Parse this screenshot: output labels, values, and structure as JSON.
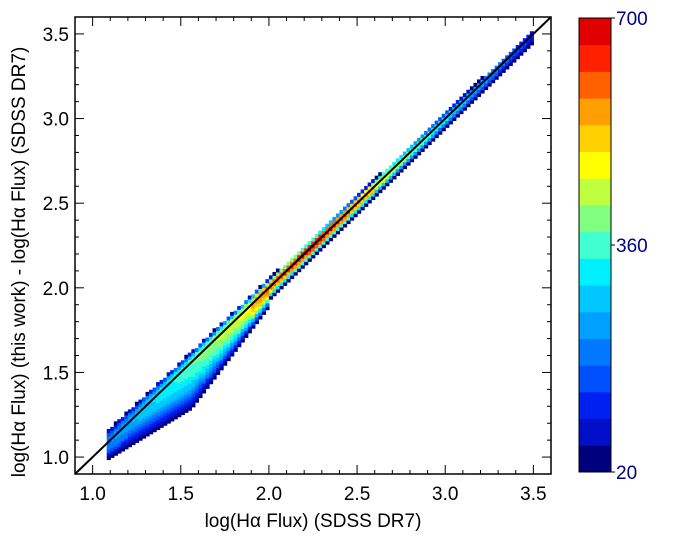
{
  "chart_data": {
    "type": "heatmap",
    "title": "",
    "xlabel": "log(Hα Flux) (SDSS DR7)",
    "ylabel": "log(Hα Flux) (this work) - log(Hα Flux) (SDSS DR7)",
    "xlim": [
      0.9,
      3.6
    ],
    "ylim": [
      0.9,
      3.6
    ],
    "xticks": [
      "1.0",
      "1.5",
      "2.0",
      "2.5",
      "3.0",
      "3.5"
    ],
    "yticks": [
      "1.0",
      "1.5",
      "2.0",
      "2.5",
      "3.0",
      "3.5"
    ],
    "grid": false,
    "reference_line": "y = x",
    "density_ridge": [
      [
        1.1,
        1.1
      ],
      [
        1.5,
        1.5
      ],
      [
        2.0,
        2.0
      ],
      [
        2.5,
        2.5
      ],
      [
        3.0,
        3.0
      ],
      [
        3.45,
        3.45
      ]
    ],
    "colorbar": {
      "min": 20,
      "max": 700,
      "labels": [
        "700",
        "360",
        "20"
      ],
      "colors": [
        "#00007f",
        "#0010c8",
        "#0020f0",
        "#0050ff",
        "#0078ff",
        "#00a0ff",
        "#00c8ff",
        "#00f0ff",
        "#40ffd0",
        "#80ff80",
        "#c0ff40",
        "#ffff00",
        "#ffd000",
        "#ffa000",
        "#ff6000",
        "#ff2000",
        "#e00000"
      ]
    }
  }
}
